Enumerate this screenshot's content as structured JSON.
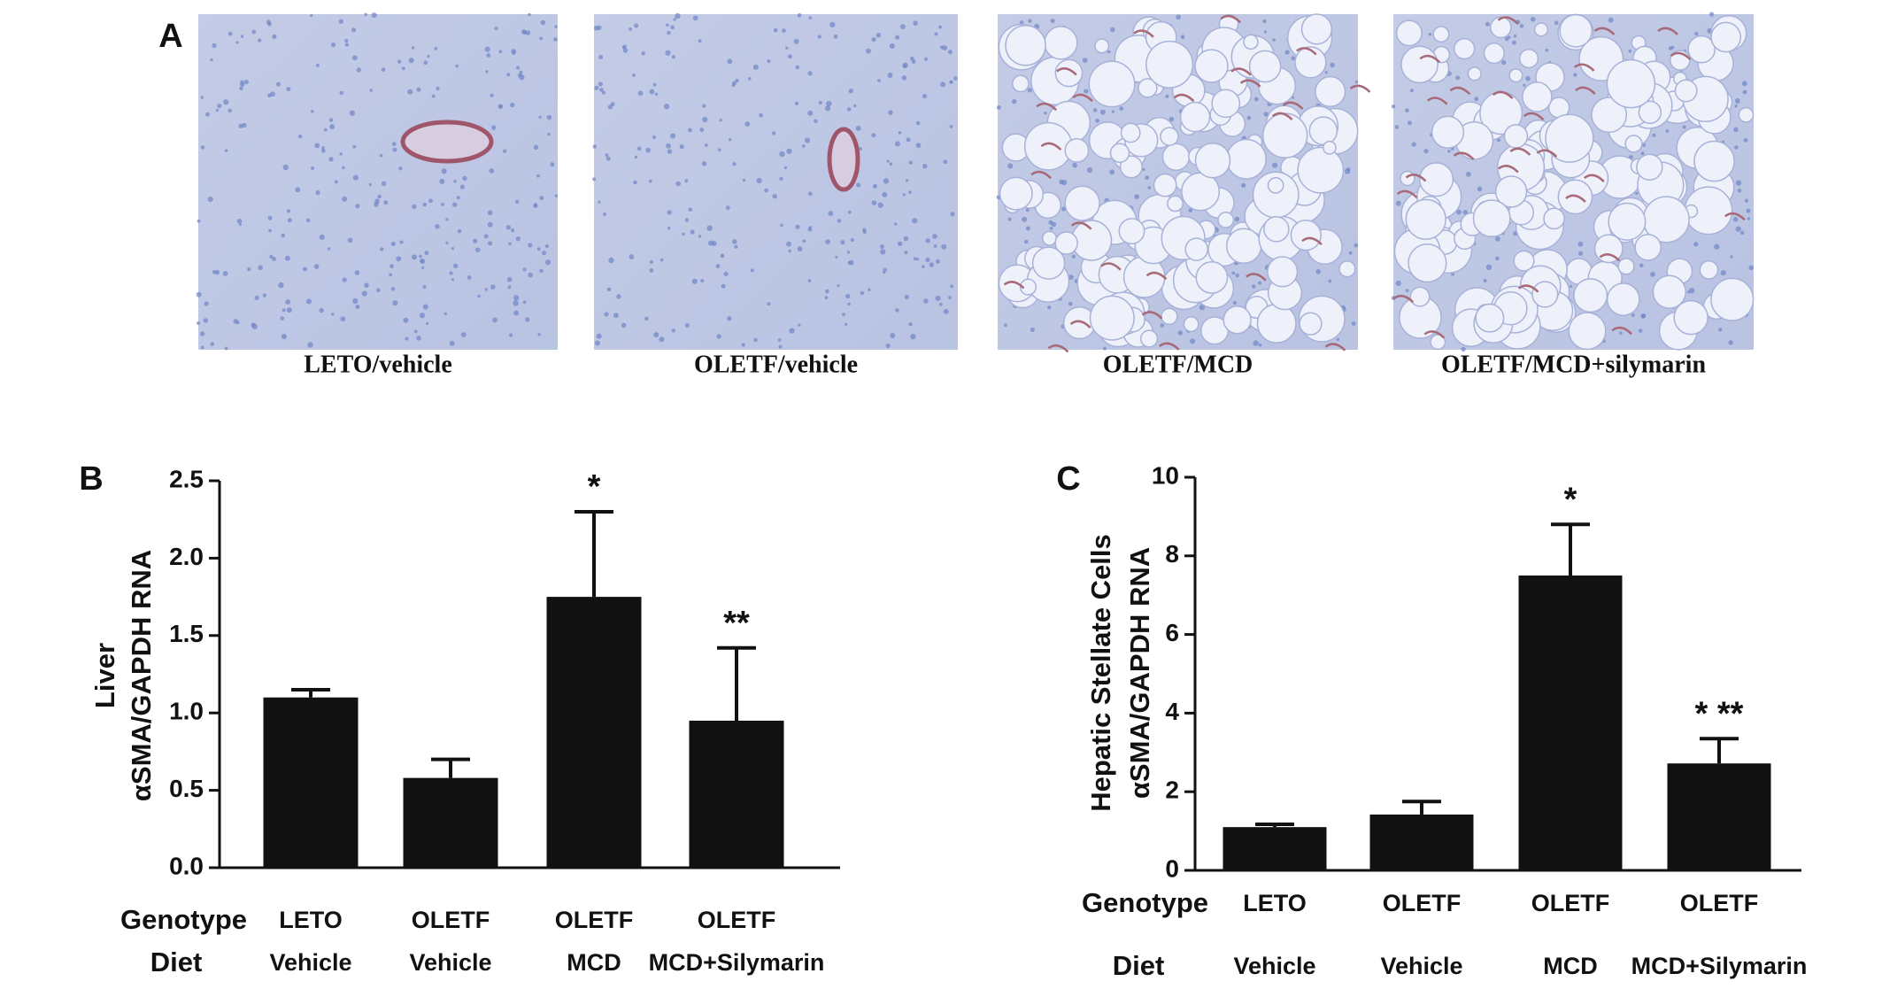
{
  "panel_a": {
    "label": "A",
    "images": [
      {
        "caption": "LETO/vehicle"
      },
      {
        "caption": "OLETF/vehicle"
      },
      {
        "caption": "OLETF/MCD"
      },
      {
        "caption": "OLETF/MCD+silymarin"
      }
    ]
  },
  "chart_data": [
    {
      "type": "bar",
      "panel_label": "B",
      "ylabel": [
        "Liver",
        "αSMA/GAPDH RNA"
      ],
      "row_labels": [
        "Genotype",
        "Diet"
      ],
      "categories": [
        "LETO",
        "OLETF",
        "OLETF",
        "OLETF"
      ],
      "diet": [
        "Vehicle",
        "Vehicle",
        "MCD",
        "MCD+Silymarin"
      ],
      "values": [
        1.1,
        0.58,
        1.75,
        0.95
      ],
      "errors": [
        0.05,
        0.12,
        0.55,
        0.47
      ],
      "annotations": [
        null,
        null,
        "*",
        "**"
      ],
      "color": "#111111",
      "ylim": [
        0,
        2.5
      ],
      "yticks": [
        {
          "value": 0,
          "label": "0.0"
        },
        0.5,
        {
          "value": 1,
          "label": "1.0"
        },
        1.5,
        {
          "value": 2,
          "label": "2.0"
        },
        2.5
      ]
    },
    {
      "type": "bar",
      "panel_label": "C",
      "ylabel": [
        "Hepatic Stellate Cells",
        "αSMA/GAPDH RNA"
      ],
      "row_labels": [
        "Genotype",
        "Diet"
      ],
      "categories": [
        "LETO",
        "OLETF",
        "OLETF",
        "OLETF"
      ],
      "diet": [
        "Vehicle",
        "Vehicle",
        "MCD",
        "MCD+Silymarin"
      ],
      "values": [
        1.1,
        1.42,
        7.5,
        2.72
      ],
      "errors": [
        0.07,
        0.33,
        1.3,
        0.63
      ],
      "annotations": [
        null,
        null,
        "*",
        "* **"
      ],
      "color": "#111111",
      "ylim": [
        0,
        10
      ],
      "yticks": [
        0,
        2,
        4,
        6,
        8,
        10
      ]
    }
  ]
}
